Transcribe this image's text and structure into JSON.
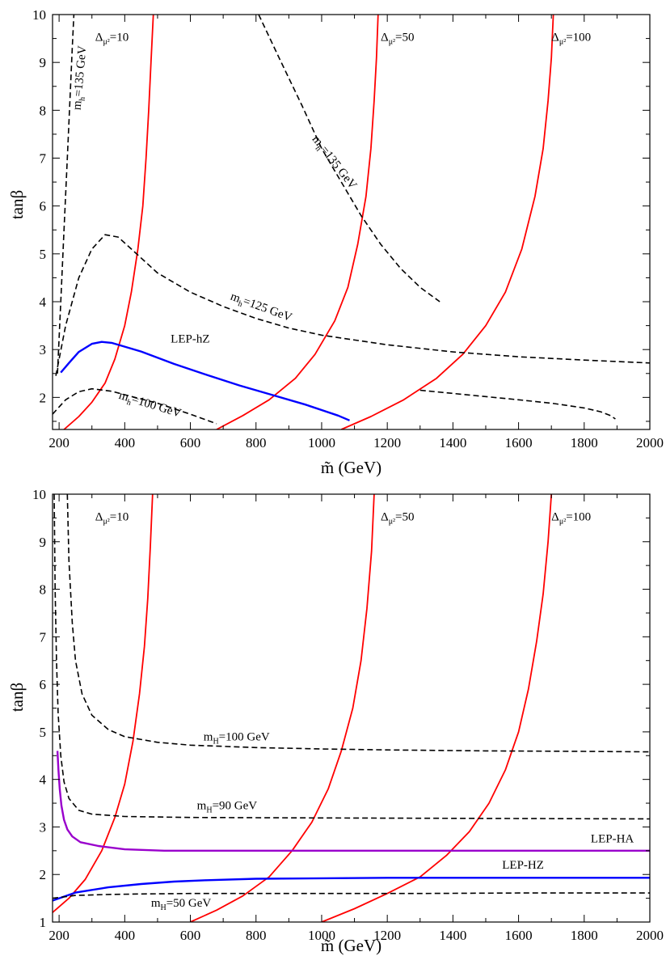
{
  "chart_data": [
    {
      "type": "line",
      "xlabel": "m̃ (GeV)",
      "ylabel": "tanβ",
      "xlim": [
        180,
        2000
      ],
      "ylim": [
        1.33,
        10
      ],
      "xticks": [
        200,
        400,
        600,
        800,
        1000,
        1200,
        1400,
        1600,
        1800,
        2000
      ],
      "yticks": [
        2,
        3,
        4,
        5,
        6,
        7,
        8,
        9,
        10
      ],
      "series": [
        {
          "name": "Δμ²=10",
          "color": "#ff0000",
          "style": "solid",
          "x": [
            215,
            260,
            300,
            340,
            370,
            400,
            420,
            440,
            455,
            465,
            473,
            480,
            487
          ],
          "y": [
            1.33,
            1.6,
            1.9,
            2.3,
            2.8,
            3.5,
            4.2,
            5.1,
            6.0,
            7.0,
            8.0,
            9.0,
            10.0
          ]
        },
        {
          "name": "Δμ²=50",
          "color": "#ff0000",
          "style": "solid",
          "x": [
            680,
            760,
            840,
            920,
            980,
            1040,
            1080,
            1110,
            1135,
            1150,
            1160,
            1167,
            1172
          ],
          "y": [
            1.33,
            1.62,
            1.95,
            2.4,
            2.9,
            3.6,
            4.3,
            5.2,
            6.2,
            7.2,
            8.2,
            9.1,
            10.0
          ]
        },
        {
          "name": "Δμ²=100",
          "color": "#ff0000",
          "style": "solid",
          "x": [
            1060,
            1150,
            1250,
            1350,
            1430,
            1500,
            1560,
            1610,
            1650,
            1675,
            1690,
            1700,
            1706
          ],
          "y": [
            1.33,
            1.6,
            1.95,
            2.4,
            2.9,
            3.5,
            4.2,
            5.1,
            6.2,
            7.2,
            8.2,
            9.1,
            10.0
          ]
        },
        {
          "name": "m_h=135 GeV",
          "color": "#000000",
          "style": "dashed",
          "x": [
            195,
            205,
            215,
            225,
            235,
            240,
            245
          ],
          "y": [
            2.5,
            4.0,
            5.5,
            7.0,
            8.5,
            9.3,
            10.0
          ]
        },
        {
          "name": "m_h=135 GeV",
          "color": "#000000",
          "style": "dashed",
          "x": [
            808,
            870,
            940,
            1000,
            1060,
            1120,
            1180,
            1240,
            1300,
            1360
          ],
          "y": [
            10.0,
            9.1,
            8.1,
            7.2,
            6.5,
            5.8,
            5.2,
            4.7,
            4.3,
            4.0
          ]
        },
        {
          "name": "m_h=125 GeV",
          "color": "#000000",
          "style": "dashed",
          "x": [
            190,
            220,
            260,
            300,
            340,
            380,
            420,
            500,
            600,
            700,
            800,
            900,
            1000,
            1200,
            1400,
            1600,
            1800,
            2000
          ],
          "y": [
            2.45,
            3.5,
            4.5,
            5.1,
            5.4,
            5.35,
            5.1,
            4.6,
            4.2,
            3.9,
            3.65,
            3.45,
            3.3,
            3.1,
            2.95,
            2.85,
            2.78,
            2.72
          ]
        },
        {
          "name": "m_h=100 GeV",
          "color": "#000000",
          "style": "dashed",
          "x": [
            180,
            220,
            260,
            300,
            360,
            420,
            500,
            600,
            680
          ],
          "y": [
            1.65,
            1.95,
            2.12,
            2.18,
            2.13,
            2.02,
            1.88,
            1.65,
            1.45
          ]
        },
        {
          "name": "m_h=125 GeV (tail)",
          "color": "#000000",
          "style": "dashed",
          "x": [
            1300,
            1450,
            1600,
            1700,
            1800,
            1850,
            1880,
            1895
          ],
          "y": [
            2.15,
            2.05,
            1.95,
            1.88,
            1.78,
            1.7,
            1.62,
            1.55
          ]
        },
        {
          "name": "LEP-hZ",
          "color": "#0000ff",
          "style": "solid",
          "x": [
            205,
            230,
            260,
            300,
            330,
            360,
            400,
            450,
            500,
            550,
            650,
            750,
            850,
            950,
            1050,
            1085
          ],
          "y": [
            2.52,
            2.72,
            2.95,
            3.12,
            3.16,
            3.14,
            3.06,
            2.96,
            2.83,
            2.7,
            2.47,
            2.25,
            2.05,
            1.85,
            1.62,
            1.52
          ]
        }
      ],
      "annotations": [
        {
          "label": "Δ",
          "sub": "μ²",
          "rest": "=10",
          "x": 310,
          "y": 9.45
        },
        {
          "label": "Δ",
          "sub": "μ²",
          "rest": "=50",
          "x": 1180,
          "y": 9.45
        },
        {
          "label": "Δ",
          "sub": "μ²",
          "rest": "=100",
          "x": 1700,
          "y": 9.45
        },
        {
          "label": "LEP-hZ",
          "x": 540,
          "y": 3.15
        }
      ],
      "rotated_labels": [
        {
          "label": "m",
          "sub": "h",
          "rest": "=135 GeV",
          "x": 265,
          "y": 8.0,
          "angle": -85
        },
        {
          "label": "m",
          "sub": "h",
          "rest": "=135 GeV",
          "x": 970,
          "y": 7.4,
          "angle": 52
        },
        {
          "label": "m",
          "sub": "h",
          "rest": "=125 GeV",
          "x": 720,
          "y": 4.05,
          "angle": 20
        },
        {
          "label": "m",
          "sub": "h",
          "rest": "=100 GeV",
          "x": 380,
          "y": 1.98,
          "angle": 17
        }
      ]
    },
    {
      "type": "line",
      "xlabel": "m̃ (GeV)",
      "ylabel": "tanβ",
      "xlim": [
        180,
        2000
      ],
      "ylim": [
        1,
        10
      ],
      "xticks": [
        200,
        400,
        600,
        800,
        1000,
        1200,
        1400,
        1600,
        1800,
        2000
      ],
      "yticks": [
        1,
        2,
        3,
        4,
        5,
        6,
        7,
        8,
        9,
        10
      ],
      "series": [
        {
          "name": "Δμ²=10",
          "color": "#ff0000",
          "style": "solid",
          "x": [
            180,
            230,
            280,
            330,
            370,
            400,
            425,
            445,
            460,
            470,
            478,
            485
          ],
          "y": [
            1.2,
            1.5,
            1.9,
            2.5,
            3.2,
            3.9,
            4.8,
            5.8,
            6.8,
            7.8,
            8.9,
            10.0
          ]
        },
        {
          "name": "Δμ²=50",
          "color": "#ff0000",
          "style": "solid",
          "x": [
            600,
            680,
            760,
            840,
            910,
            970,
            1020,
            1060,
            1095,
            1120,
            1138,
            1152,
            1160
          ],
          "y": [
            1.0,
            1.25,
            1.55,
            1.95,
            2.5,
            3.1,
            3.8,
            4.6,
            5.5,
            6.5,
            7.6,
            8.8,
            10.0
          ]
        },
        {
          "name": "Δμ²=100",
          "color": "#ff0000",
          "style": "solid",
          "x": [
            1000,
            1100,
            1200,
            1300,
            1380,
            1450,
            1510,
            1560,
            1600,
            1630,
            1655,
            1675,
            1690,
            1700
          ],
          "y": [
            1.0,
            1.28,
            1.6,
            1.95,
            2.4,
            2.9,
            3.5,
            4.2,
            5.0,
            5.9,
            6.9,
            7.9,
            9.0,
            10.0
          ]
        },
        {
          "name": "m_H=100 GeV",
          "color": "#000000",
          "style": "dashed",
          "x": [
            225,
            230,
            240,
            250,
            270,
            300,
            350,
            400,
            500,
            600,
            800,
            1000,
            1200,
            1500,
            1800,
            2000
          ],
          "y": [
            10.0,
            8.6,
            7.3,
            6.5,
            5.8,
            5.35,
            5.05,
            4.9,
            4.78,
            4.72,
            4.67,
            4.64,
            4.62,
            4.6,
            4.59,
            4.58
          ]
        },
        {
          "name": "m_H=90 GeV",
          "color": "#000000",
          "style": "dashed",
          "x": [
            185,
            188,
            192,
            197,
            205,
            215,
            230,
            260,
            300,
            400,
            600,
            1000,
            1500,
            2000
          ],
          "y": [
            10.0,
            8.0,
            6.5,
            5.4,
            4.5,
            3.95,
            3.6,
            3.35,
            3.27,
            3.22,
            3.2,
            3.19,
            3.18,
            3.17
          ]
        },
        {
          "name": "LEP-HA",
          "color": "#9900cc",
          "style": "solid",
          "x": [
            195,
            198,
            202,
            207,
            215,
            225,
            240,
            265,
            320,
            400,
            520,
            800,
            1200,
            1600,
            2000
          ],
          "y": [
            4.6,
            4.2,
            3.8,
            3.45,
            3.15,
            2.95,
            2.8,
            2.68,
            2.6,
            2.53,
            2.5,
            2.5,
            2.5,
            2.5,
            2.5
          ]
        },
        {
          "name": "LEP-HZ",
          "color": "#0000ff",
          "style": "solid",
          "x": [
            180,
            250,
            350,
            450,
            550,
            650,
            800,
            1000,
            1200,
            1500,
            1800,
            2000
          ],
          "y": [
            1.45,
            1.62,
            1.73,
            1.8,
            1.85,
            1.88,
            1.91,
            1.92,
            1.93,
            1.93,
            1.93,
            1.93
          ]
        },
        {
          "name": "m_H=50 GeV",
          "color": "#000000",
          "style": "dashed",
          "x": [
            180,
            250,
            350,
            450,
            600,
            800,
            1000,
            1300,
            1600,
            2000
          ],
          "y": [
            1.5,
            1.56,
            1.58,
            1.59,
            1.6,
            1.6,
            1.6,
            1.6,
            1.61,
            1.61
          ]
        }
      ],
      "annotations": [
        {
          "label": "Δ",
          "sub": "μ²",
          "rest": "=10",
          "x": 310,
          "y": 9.45
        },
        {
          "label": "Δ",
          "sub": "μ²",
          "rest": "=50",
          "x": 1180,
          "y": 9.45
        },
        {
          "label": "Δ",
          "sub": "μ²",
          "rest": "=100",
          "x": 1700,
          "y": 9.45
        },
        {
          "label": "m",
          "sub": "H",
          "rest": "=100 GeV",
          "x": 640,
          "y": 4.82
        },
        {
          "label": "m",
          "sub": "H",
          "rest": "=90 GeV",
          "x": 620,
          "y": 3.37
        },
        {
          "label": "m",
          "sub": "H",
          "rest": "=50 GeV",
          "x": 480,
          "y": 1.32
        },
        {
          "label": "LEP-HA",
          "x": 1820,
          "y": 2.68
        },
        {
          "label": "LEP-HZ",
          "x": 1550,
          "y": 2.12
        }
      ],
      "rotated_labels": []
    }
  ]
}
